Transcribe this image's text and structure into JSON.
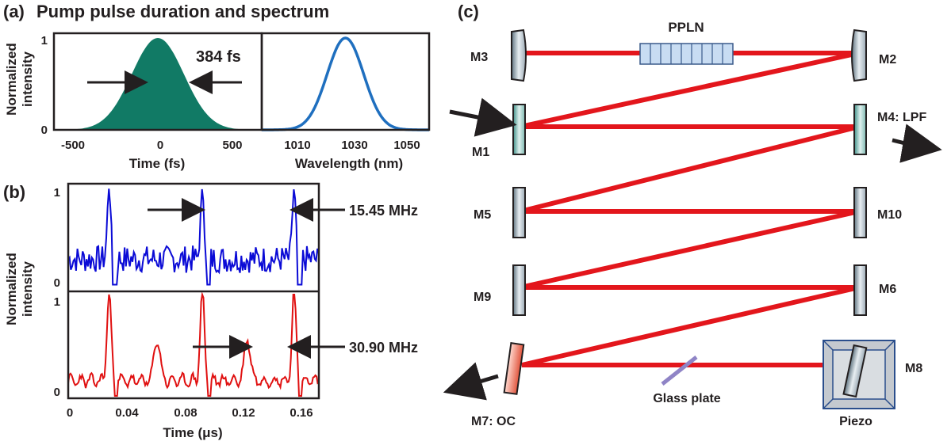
{
  "figure": {
    "panel_a": {
      "tag": "(a)",
      "title": "Pump pulse duration and spectrum",
      "ylabel_line1": "Normalized",
      "ylabel_line2": "intensity",
      "yticks": [
        "0",
        "1"
      ],
      "duration_label": "384 fs",
      "time_xlabel": "Time (fs)",
      "time_xticks": [
        "-500",
        "0",
        "500"
      ],
      "wl_xlabel": "Wavelength (nm)",
      "wl_xticks": [
        "1010",
        "1030",
        "1050"
      ],
      "pulse_color": "#117a65",
      "spectrum_color": "#1f6fbf"
    },
    "panel_b": {
      "tag": "(b)",
      "ylabel_line1": "Normalized",
      "ylabel_line2": "intensity",
      "top_yticks": [
        "0",
        "1"
      ],
      "bottom_yticks": [
        "0",
        "1"
      ],
      "top_rate_label": "15.45 MHz",
      "bottom_rate_label": "30.90 MHz",
      "xlabel": "Time (μs)",
      "xticks": [
        "0",
        "0.04",
        "0.08",
        "0.12",
        "0.16"
      ],
      "top_color": "#0b0bd6",
      "bottom_color": "#e01010"
    },
    "panel_c": {
      "tag": "(c)",
      "crystal_label": "PPLN",
      "mirrors": {
        "m1": "M1",
        "m2": "M2",
        "m3": "M3",
        "m4": "M4: LPF",
        "m5": "M5",
        "m6": "M6",
        "m7": "M7: OC",
        "m8": "M8",
        "m9": "M9",
        "m10": "M10"
      },
      "glass_label": "Glass plate",
      "piezo_label": "Piezo",
      "beam_color": "#e3161c",
      "crystal_color": "#c8dcf2"
    }
  },
  "chart_data": [
    {
      "type": "area",
      "panel": "(a) left",
      "xlabel": "Time (fs)",
      "ylabel": "Normalized intensity",
      "xlim": [
        -650,
        650
      ],
      "ylim": [
        0,
        1
      ],
      "series": [
        {
          "values_note": "Gaussian pulse",
          "fwhm_fs": 384,
          "x": [
            -600,
            -400,
            -300,
            -200,
            -100,
            0,
            100,
            200,
            300,
            400,
            600
          ],
          "y": [
            0.0,
            0.02,
            0.09,
            0.31,
            0.76,
            1.0,
            0.76,
            0.31,
            0.09,
            0.02,
            0.0
          ]
        }
      ]
    },
    {
      "type": "line",
      "panel": "(a) right",
      "xlabel": "Wavelength (nm)",
      "xlim": [
        997,
        1063
      ],
      "ylim": [
        0,
        1
      ],
      "series": [
        {
          "x": [
            1000,
            1010,
            1015,
            1020,
            1025,
            1030,
            1035,
            1040,
            1045,
            1050,
            1060
          ],
          "y": [
            0.0,
            0.02,
            0.12,
            0.45,
            0.85,
            1.0,
            0.85,
            0.45,
            0.12,
            0.02,
            0.0
          ]
        }
      ]
    },
    {
      "type": "line",
      "panel": "(b) top",
      "xlabel": "Time (μs)",
      "xlim": [
        0,
        0.17
      ],
      "ylim": [
        0,
        1
      ],
      "series": [
        {
          "x": [
            0,
            0.01,
            0.02,
            0.028,
            0.035,
            0.05,
            0.07,
            0.092,
            0.1,
            0.12,
            0.14,
            0.155,
            0.165,
            0.17
          ],
          "y": [
            0.3,
            0.32,
            0.28,
            1.0,
            0.02,
            0.4,
            0.3,
            1.0,
            0.05,
            0.35,
            0.3,
            1.0,
            0.1,
            0.4
          ]
        }
      ]
    },
    {
      "type": "line",
      "panel": "(b) bottom",
      "xlabel": "Time (μs)",
      "xlim": [
        0,
        0.17
      ],
      "ylim": [
        0,
        1
      ],
      "series": [
        {
          "x": [
            0,
            0.01,
            0.02,
            0.028,
            0.035,
            0.05,
            0.06,
            0.07,
            0.092,
            0.1,
            0.11,
            0.123,
            0.13,
            0.155,
            0.165,
            0.17
          ],
          "y": [
            0.2,
            0.15,
            0.2,
            1.0,
            0.0,
            0.15,
            0.55,
            0.15,
            1.0,
            0.0,
            0.15,
            0.6,
            0.15,
            1.0,
            0.1,
            0.2
          ]
        }
      ]
    }
  ]
}
